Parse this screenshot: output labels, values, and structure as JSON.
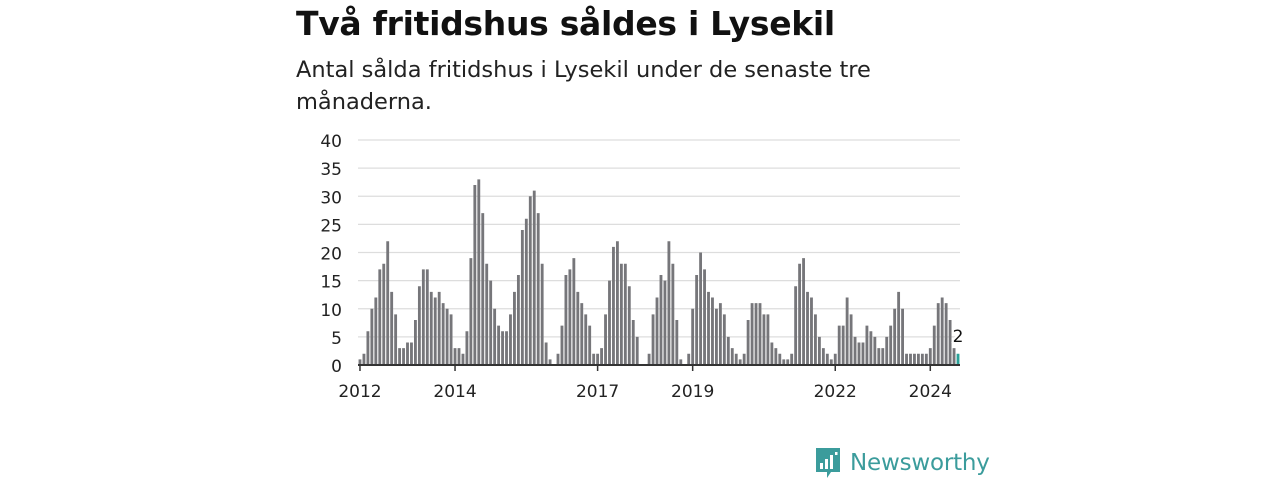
{
  "header": {
    "title": "Två fritidshus såldes i Lysekil",
    "subtitle": "Antal sålda fritidshus i Lysekil under de senaste tre månaderna."
  },
  "brand": {
    "name": "Newsworthy",
    "icon": "newsworthy-logo-icon",
    "color": "#3b9c9c"
  },
  "chart_data": {
    "type": "bar",
    "title": "Två fritidshus såldes i Lysekil",
    "subtitle": "Antal sålda fritidshus i Lysekil under de senaste tre månaderna.",
    "ylim": [
      0,
      40
    ],
    "yticks": [
      "40",
      "35",
      "30",
      "25",
      "20",
      "15",
      "10",
      "5",
      "0"
    ],
    "ytick_values": [
      40,
      35,
      30,
      25,
      20,
      15,
      10,
      5,
      0
    ],
    "xticks": [
      {
        "label": "2012",
        "month_index": 0
      },
      {
        "label": "2014",
        "month_index": 24
      },
      {
        "label": "2017",
        "month_index": 60
      },
      {
        "label": "2019",
        "month_index": 84
      },
      {
        "label": "2022",
        "month_index": 120
      },
      {
        "label": "2024",
        "month_index": 144
      }
    ],
    "start": "2012-01",
    "frequency": "monthly",
    "grid": true,
    "colors": {
      "bars": "#76767a",
      "highlight": "#2aa198",
      "grid": "#dddddd",
      "axis": "#333333"
    },
    "highlight_label": "2",
    "values": [
      1,
      2,
      6,
      10,
      12,
      17,
      18,
      22,
      13,
      9,
      3,
      3,
      4,
      4,
      8,
      14,
      17,
      17,
      13,
      12,
      13,
      11,
      10,
      9,
      3,
      3,
      2,
      6,
      19,
      32,
      33,
      27,
      18,
      15,
      10,
      7,
      6,
      6,
      9,
      13,
      16,
      24,
      26,
      30,
      31,
      27,
      18,
      4,
      1,
      0,
      2,
      7,
      16,
      17,
      19,
      13,
      11,
      9,
      7,
      2,
      2,
      3,
      9,
      15,
      21,
      22,
      18,
      18,
      14,
      8,
      5,
      0,
      0,
      2,
      9,
      12,
      16,
      15,
      22,
      18,
      8,
      1,
      0,
      2,
      10,
      16,
      20,
      17,
      13,
      12,
      10,
      11,
      9,
      5,
      3,
      2,
      1,
      2,
      8,
      11,
      11,
      11,
      9,
      9,
      4,
      3,
      2,
      1,
      1,
      2,
      14,
      18,
      19,
      13,
      12,
      9,
      5,
      3,
      2,
      1,
      2,
      7,
      7,
      12,
      9,
      5,
      4,
      4,
      7,
      6,
      5,
      3,
      3,
      5,
      7,
      10,
      13,
      10,
      2,
      2,
      2,
      2,
      2,
      2,
      3,
      7,
      11,
      12,
      11,
      8,
      3,
      2
    ]
  }
}
